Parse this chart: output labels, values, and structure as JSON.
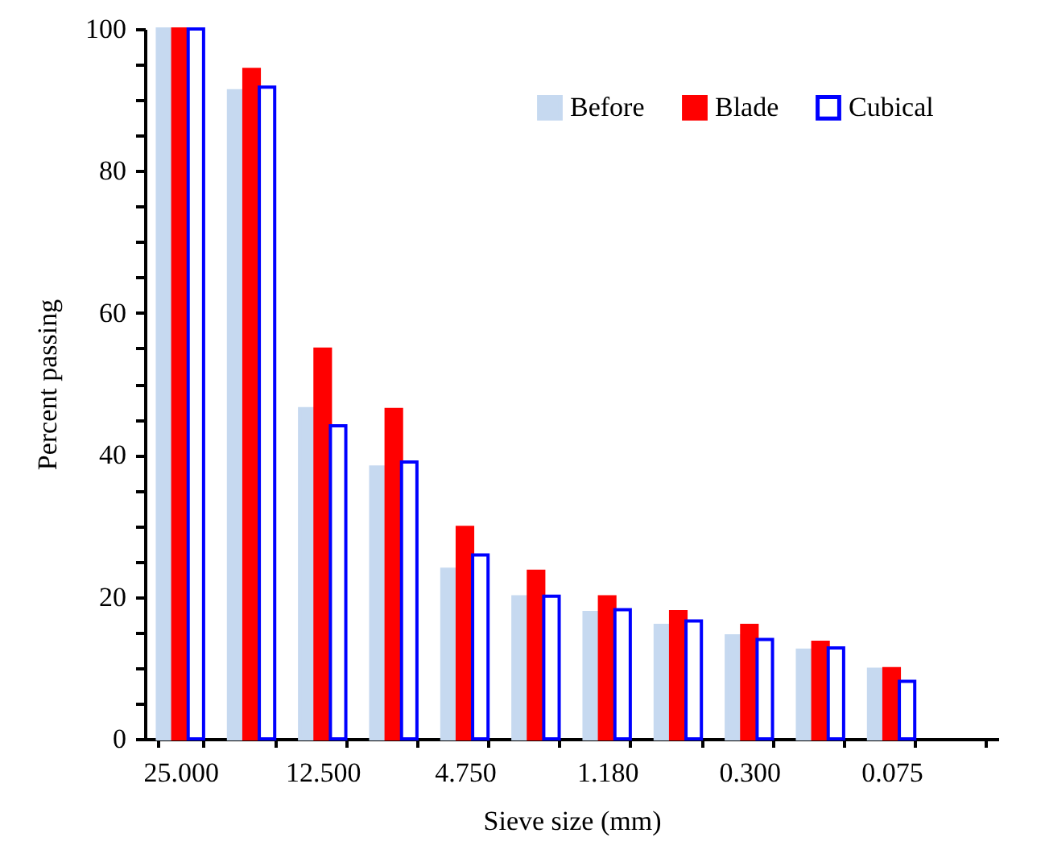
{
  "chart_data": {
    "type": "bar",
    "xlabel": "Sieve size (mm)",
    "ylabel": "Percent passing",
    "categories": [
      "25.000",
      null,
      "12.500",
      null,
      "4.750",
      null,
      "1.180",
      null,
      "0.300",
      null,
      "0.075",
      null
    ],
    "series": [
      {
        "name": "Before",
        "color": "#c6d9f0",
        "values": [
          100,
          91.3,
          46.5,
          38.3,
          23.9,
          20.0,
          17.8,
          16.0,
          14.5,
          12.5,
          9.8,
          null
        ]
      },
      {
        "name": "Blade",
        "color": "#ff0000",
        "values": [
          100,
          94.3,
          54.9,
          46.4,
          29.8,
          23.6,
          20.0,
          17.9,
          16.0,
          13.6,
          9.9,
          null
        ]
      },
      {
        "name": "Cubical",
        "color": "#0000ff",
        "values": [
          100,
          91.8,
          44.1,
          39.0,
          25.9,
          20.1,
          18.2,
          16.6,
          14.0,
          12.8,
          8.1,
          null
        ]
      }
    ],
    "ylim": [
      0,
      100
    ],
    "yticks": [
      0,
      {
        "value": 5,
        "label": null
      },
      {
        "value": 10,
        "label": null
      },
      {
        "value": 15,
        "label": null
      },
      20,
      {
        "value": 25,
        "label": null
      },
      {
        "value": 30,
        "label": null
      },
      {
        "value": 35,
        "label": null
      },
      40,
      {
        "value": 45,
        "label": null
      },
      {
        "value": 50,
        "label": null
      },
      {
        "value": 55,
        "label": null
      },
      60,
      {
        "value": 65,
        "label": null
      },
      {
        "value": 70,
        "label": null
      },
      {
        "value": 75,
        "label": null
      },
      80,
      {
        "value": 85,
        "label": null
      },
      {
        "value": 90,
        "label": null
      },
      {
        "value": 95,
        "label": null
      },
      100
    ],
    "legend": "top right"
  }
}
